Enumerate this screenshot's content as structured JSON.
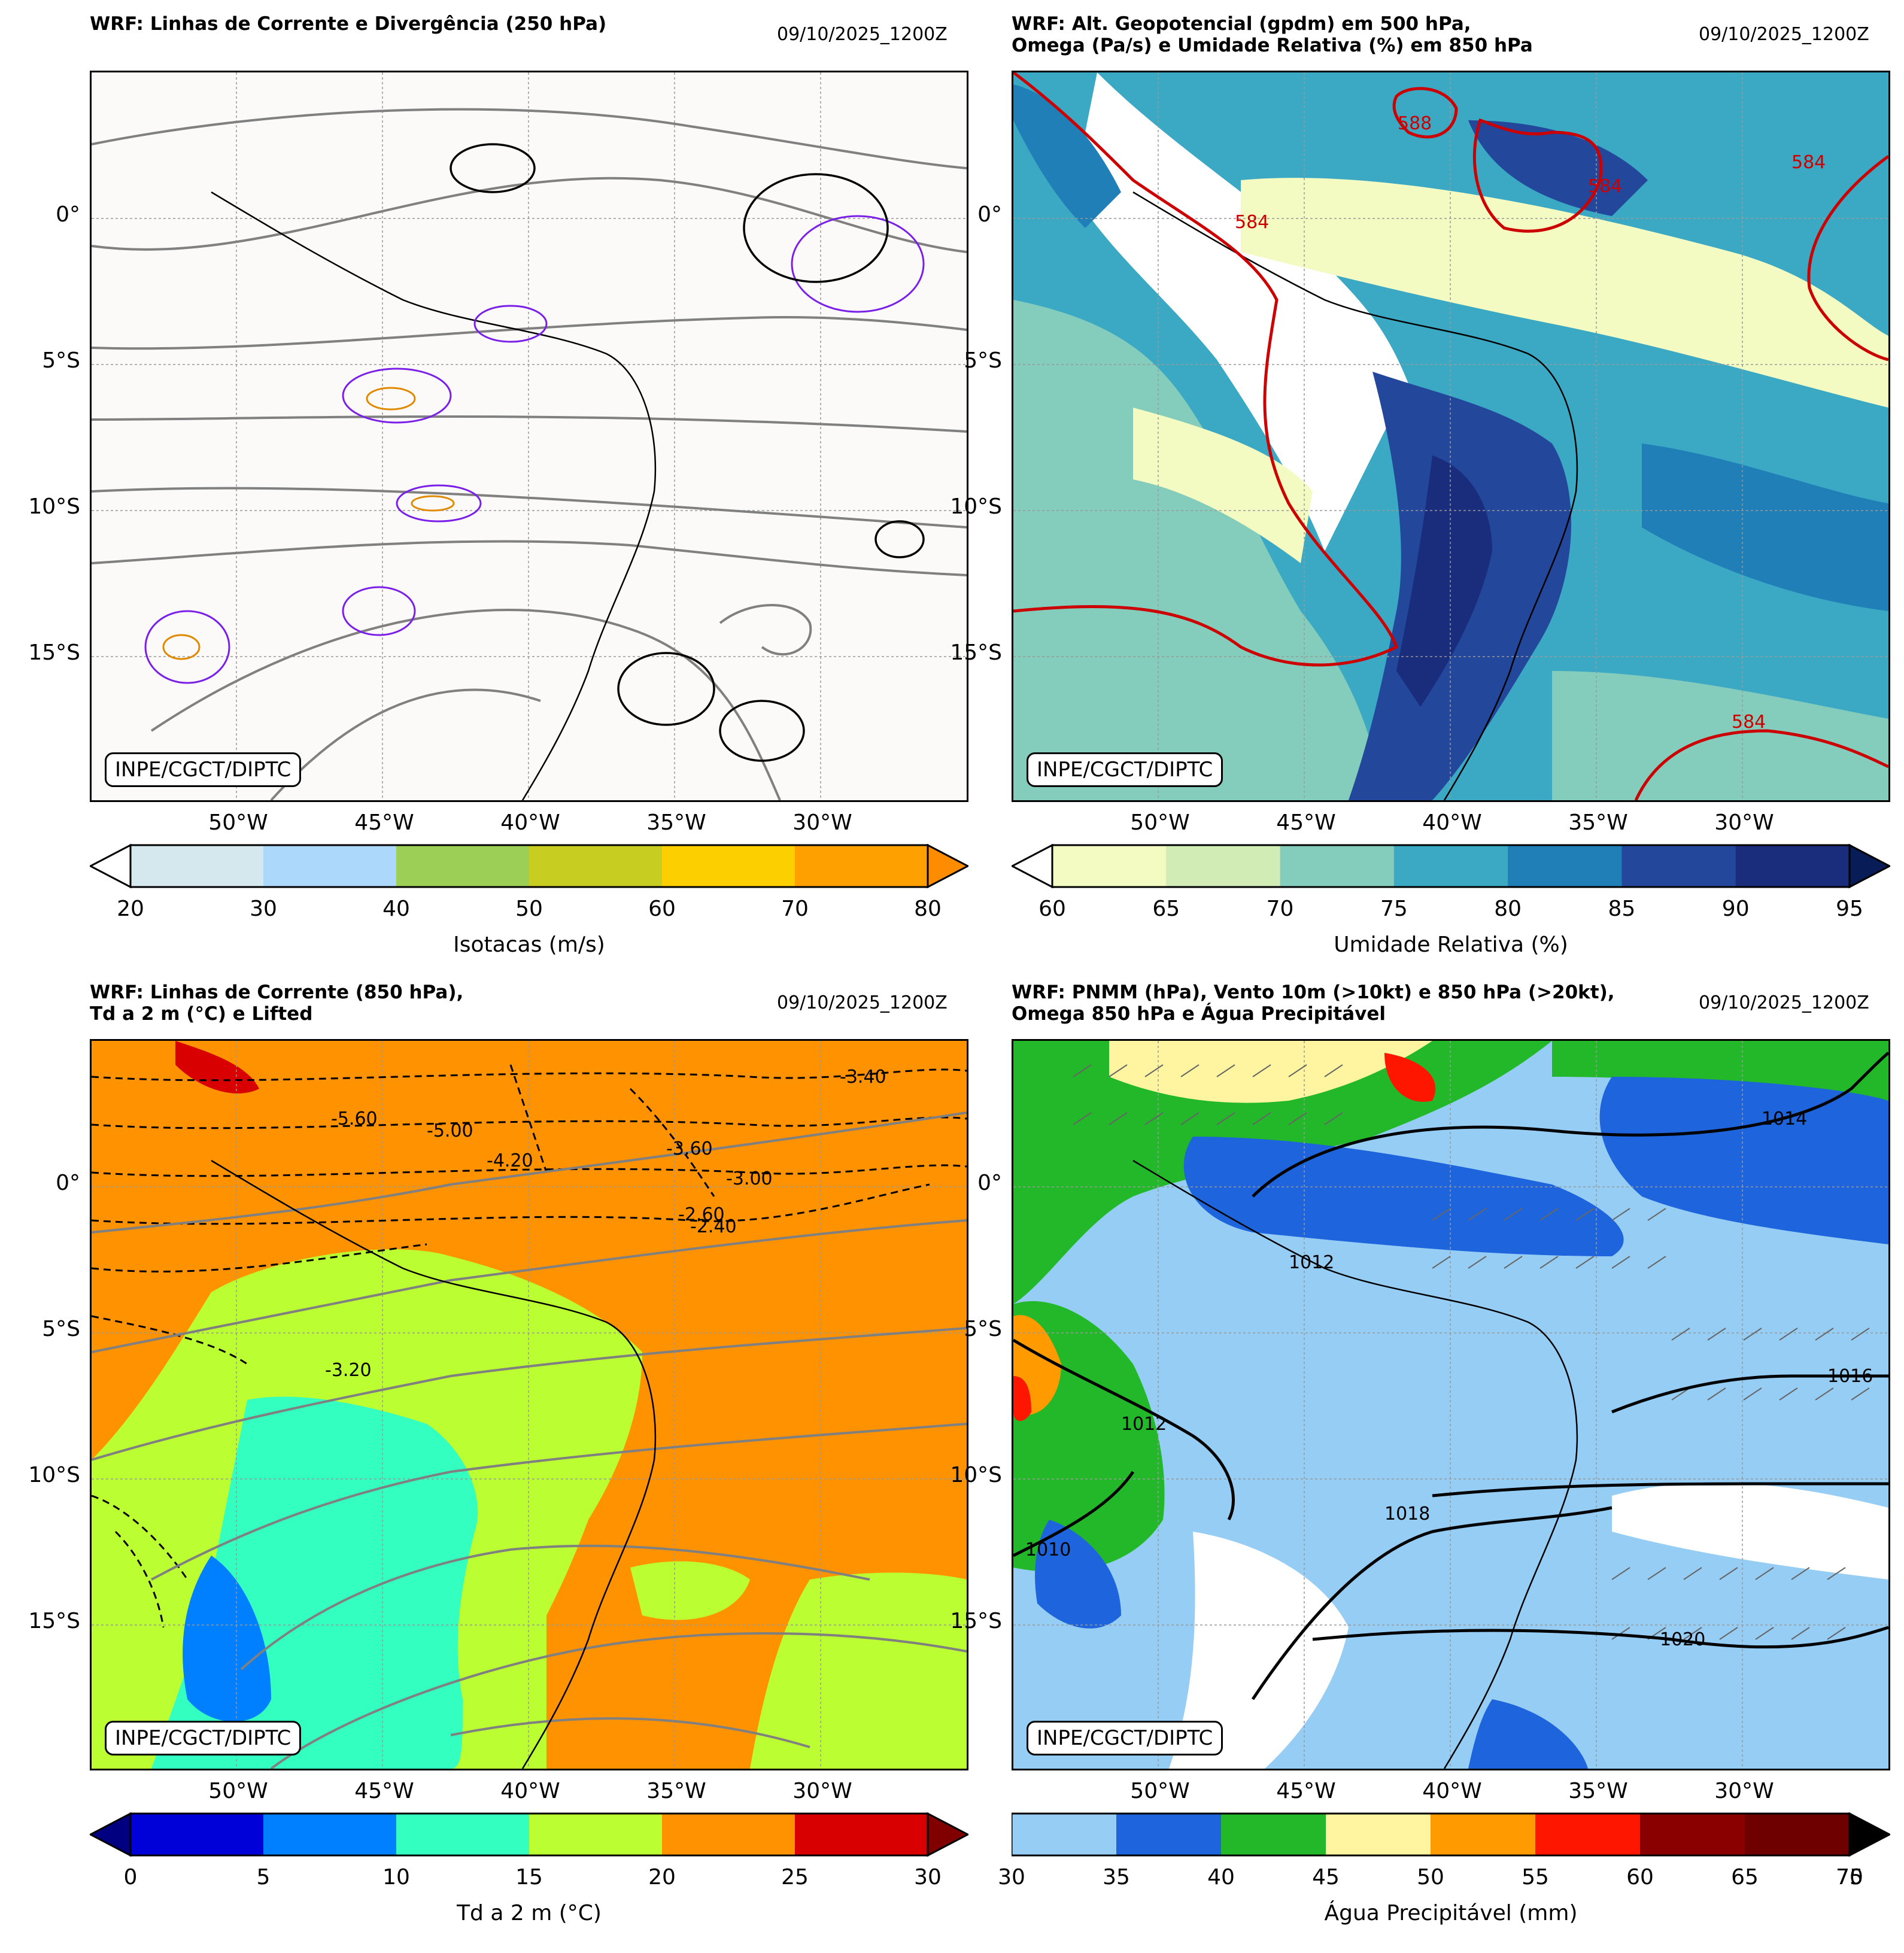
{
  "timestamp": "09/10/2025_1200Z",
  "credit": "INPE/CGCT/DIPTC",
  "lat_labels": [
    "0°",
    "5°S",
    "10°S",
    "15°S"
  ],
  "lon_labels": [
    "50°W",
    "45°W",
    "40°W",
    "35°W",
    "30°W"
  ],
  "panels": [
    {
      "title": "WRF: Linhas de Corrente e Divergência (250 hPa)",
      "colorbar": {
        "label": "Isotacas (m/s)",
        "ticks": [
          "20",
          "30",
          "40",
          "50",
          "60",
          "70",
          "80"
        ],
        "colors": [
          "#d4e8ee",
          "#abd8fb",
          "#9ccf55",
          "#c8cd21",
          "#fcd000",
          "#fda000"
        ],
        "under_color": "#ffffff",
        "over_color": "#fd8c00"
      }
    },
    {
      "title": "WRF: Alt. Geopotencial (gpdm) em 500 hPa,\nOmega (Pa/s) e Umidade Relativa (%) em 850 hPa",
      "contour_labels": [
        "588",
        "584",
        "584",
        "584",
        "584"
      ],
      "colorbar": {
        "label": "Umidade Relativa (%)",
        "ticks": [
          "60",
          "65",
          "70",
          "75",
          "80",
          "85",
          "90",
          "95"
        ],
        "colors": [
          "#f4fbc2",
          "#d1ecb4",
          "#84ccbb",
          "#3ba8c4",
          "#1f7fb6",
          "#22479b",
          "#192d7c"
        ],
        "under_color": "#ffffff",
        "over_color": "#081d58"
      }
    },
    {
      "title": "WRF: Linhas de Corrente (850 hPa),\nTd a 2 m (°C) e Lifted",
      "contour_labels": [
        "-5.60",
        "-5.00",
        "-4.20",
        "-3.60",
        "-3.00",
        "-2.60",
        "-2.40",
        "-3.40",
        "-3.20"
      ],
      "colorbar": {
        "label": "Td a 2 m (°C)",
        "ticks": [
          "0",
          "5",
          "10",
          "15",
          "20",
          "25",
          "30"
        ],
        "colors": [
          "#0000d8",
          "#0080ff",
          "#33ffc0",
          "#bbff33",
          "#ff9200",
          "#d80000"
        ],
        "under_color": "#000080",
        "over_color": "#800000"
      }
    },
    {
      "title": "WRF: PNMM (hPa), Vento 10m (>10kt) e 850 hPa (>20kt),\nOmega 850 hPa e Água Precipitável",
      "contour_labels": [
        "1014",
        "1016",
        "1020",
        "1012",
        "1012",
        "1010",
        "1018"
      ],
      "colorbar": {
        "label": "Água Precipitável (mm)",
        "ticks": [
          "30",
          "35",
          "40",
          "45",
          "50",
          "55",
          "60",
          "65",
          "70"
        ],
        "end_overlap_label": "75",
        "colors": [
          "#96cdf5",
          "#1e64dc",
          "#23b82a",
          "#fff5a0",
          "#ff9a00",
          "#ff1600",
          "#8a0000",
          "#6e0000"
        ],
        "over_color": "#000000"
      }
    }
  ]
}
